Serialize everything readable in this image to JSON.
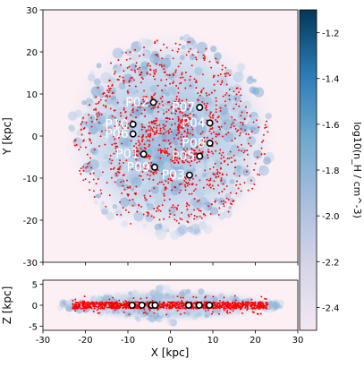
{
  "chart_data": [
    {
      "type": "scatter",
      "panel": "face-on",
      "xlabel": "X [kpc]",
      "ylabel": "Y [kpc]",
      "xlim": [
        -30,
        30
      ],
      "ylim": [
        -30,
        30
      ],
      "xticks": [
        -30,
        -20,
        -10,
        0,
        10,
        20,
        30
      ],
      "yticks": [
        -30,
        -20,
        -10,
        0,
        10,
        20,
        30
      ],
      "background": "gas density map (log10 n_H), blue shading",
      "point_color": "#ff0000",
      "labeled_points": [
        {
          "label": "P01",
          "x": -6.3,
          "y": -4.3
        },
        {
          "label": "P02",
          "x": -4.0,
          "y": 8.0
        },
        {
          "label": "P03",
          "x": 4.5,
          "y": -9.3
        },
        {
          "label": "P04",
          "x": 9.3,
          "y": 3.1
        },
        {
          "label": "P05",
          "x": 6.9,
          "y": -4.8
        },
        {
          "label": "P06",
          "x": -8.8,
          "y": 0.5
        },
        {
          "label": "P07",
          "x": 6.9,
          "y": 6.8
        },
        {
          "label": "P08",
          "x": 9.3,
          "y": -1.7
        },
        {
          "label": "P09",
          "x": -3.7,
          "y": -7.4
        },
        {
          "label": "P10",
          "x": -8.8,
          "y": 2.8
        }
      ]
    },
    {
      "type": "scatter",
      "panel": "edge-on",
      "xlabel": "X [kpc]",
      "ylabel": "Z [kpc]",
      "xlim": [
        -30,
        30
      ],
      "ylim": [
        -6,
        6
      ],
      "xticks": [
        -30,
        -20,
        -10,
        0,
        10,
        20,
        30
      ],
      "yticks": [
        -5,
        0,
        5
      ],
      "point_color": "#ff0000",
      "marker_points": [
        {
          "x": -9.0,
          "z": 0
        },
        {
          "x": -6.7,
          "z": 0
        },
        {
          "x": -4.4,
          "z": 0
        },
        {
          "x": -3.6,
          "z": 0
        },
        {
          "x": 4.3,
          "z": 0
        },
        {
          "x": 6.8,
          "z": 0
        },
        {
          "x": 9.2,
          "z": 0
        }
      ]
    },
    {
      "type": "colorbar",
      "label": "log10(n_H / cm^-3)",
      "range": [
        -2.5,
        -1.1
      ],
      "ticks": [
        "-1.2",
        "-1.4",
        "-1.6",
        "-1.8",
        "-2.0",
        "-2.2",
        "-2.4"
      ],
      "tick_values": [
        -1.2,
        -1.4,
        -1.6,
        -1.8,
        -2.0,
        -2.2,
        -2.4
      ],
      "color_low": "#f3e8f1",
      "color_high": "#023858"
    }
  ]
}
